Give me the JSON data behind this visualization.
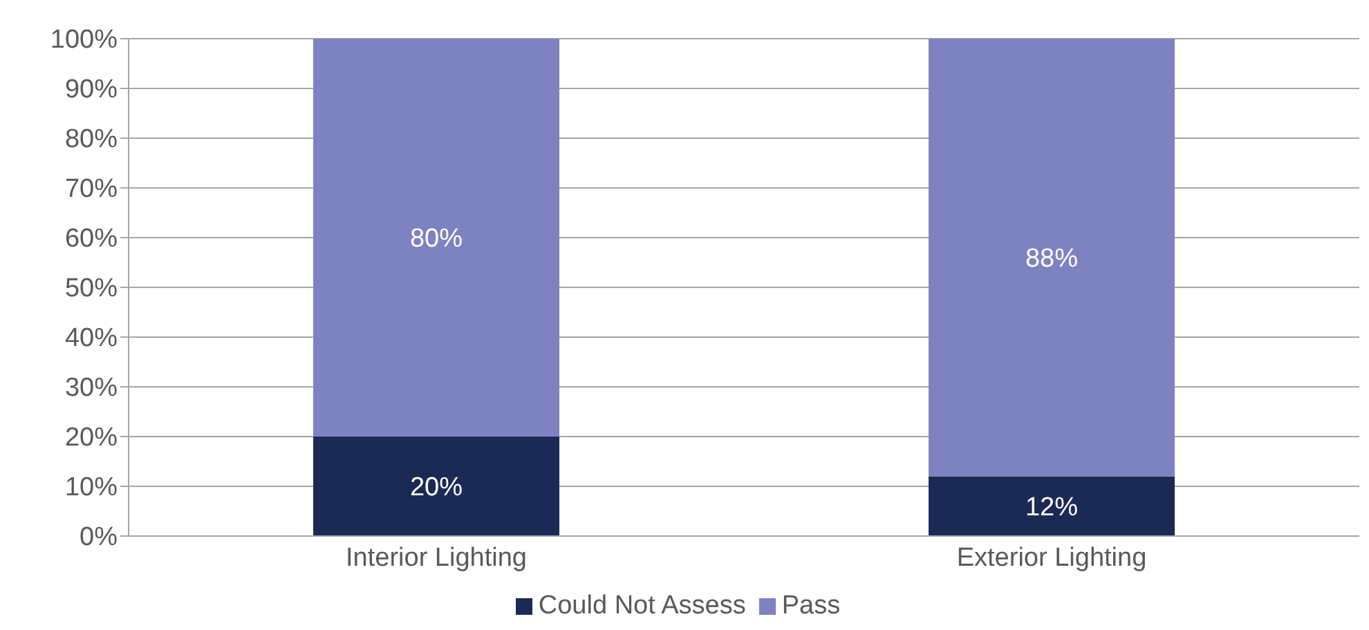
{
  "chart_data": {
    "type": "bar",
    "stacked": true,
    "categories": [
      "Interior Lighting",
      "Exterior Lighting"
    ],
    "series": [
      {
        "name": "Could Not Assess",
        "color": "#1b2a55",
        "values": [
          20,
          12
        ],
        "value_labels": [
          "20%",
          "12%"
        ]
      },
      {
        "name": "Pass",
        "color": "#7f82c0",
        "values": [
          80,
          88
        ],
        "value_labels": [
          "80%",
          "88%"
        ]
      }
    ],
    "ylim": [
      0,
      100
    ],
    "yticks": [
      {
        "value": 0,
        "label": "0%"
      },
      {
        "value": 10,
        "label": "10%"
      },
      {
        "value": 20,
        "label": "20%"
      },
      {
        "value": 30,
        "label": "30%"
      },
      {
        "value": 40,
        "label": "40%"
      },
      {
        "value": 50,
        "label": "50%"
      },
      {
        "value": 60,
        "label": "60%"
      },
      {
        "value": 70,
        "label": "70%"
      },
      {
        "value": 80,
        "label": "80%"
      },
      {
        "value": 90,
        "label": "90%"
      },
      {
        "value": 100,
        "label": "100%"
      }
    ],
    "grid": "y",
    "legend": "bottom"
  }
}
